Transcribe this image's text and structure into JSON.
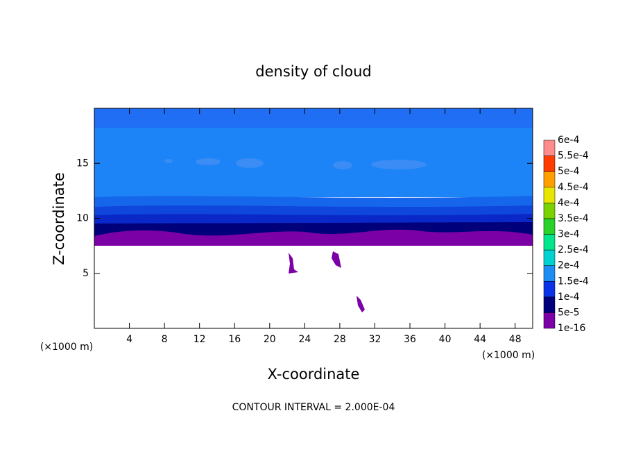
{
  "chart_data": {
    "type": "contour",
    "title": "density of cloud",
    "x_label": "X-coordinate",
    "y_label": "Z-coordinate",
    "x_unit": "(×1000 m)",
    "annotation": "CONTOUR INTERVAL = 2.000E-04",
    "xlim": [
      0,
      50
    ],
    "ylim": [
      0,
      20
    ],
    "xticks": [
      4,
      8,
      12,
      16,
      20,
      24,
      28,
      32,
      36,
      40,
      44,
      48
    ],
    "yticks": [
      5,
      10,
      15
    ],
    "colorbar": {
      "levels": [
        {
          "value": 1e-16,
          "label": "1e-16"
        },
        {
          "value": 5e-05,
          "label": "5e-5"
        },
        {
          "value": 0.0001,
          "label": "1e-4"
        },
        {
          "value": 0.00015,
          "label": "1.5e-4"
        },
        {
          "value": 0.0002,
          "label": "2e-4"
        },
        {
          "value": 0.00025,
          "label": "2.5e-4"
        },
        {
          "value": 0.0003,
          "label": "3e-4"
        },
        {
          "value": 0.00035,
          "label": "3.5e-4"
        },
        {
          "value": 0.0004,
          "label": "4e-4"
        },
        {
          "value": 0.00045,
          "label": "4.5e-4"
        },
        {
          "value": 0.0005,
          "label": "5e-4"
        },
        {
          "value": 0.00055,
          "label": "5.5e-4"
        },
        {
          "value": 0.0006,
          "label": "6e-4"
        }
      ],
      "colors": [
        "#7b00a6",
        "#00007a",
        "#0a32e6",
        "#1e8cf5",
        "#00d2d2",
        "#00e68c",
        "#28d228",
        "#7ad200",
        "#e6e600",
        "#ffa000",
        "#ff3c00",
        "#ff8c8c"
      ]
    }
  }
}
